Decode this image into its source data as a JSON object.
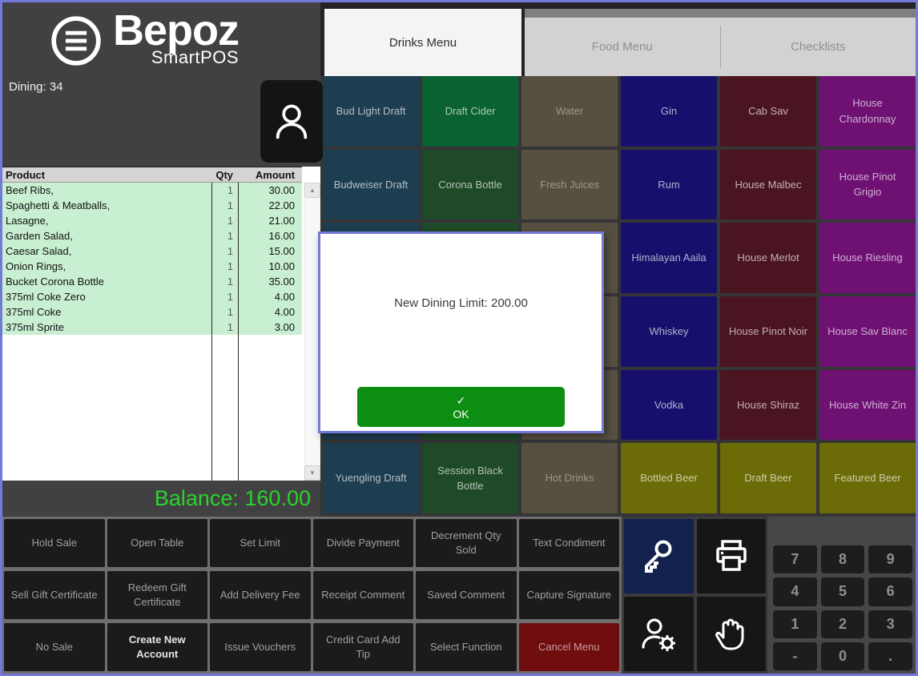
{
  "window": {
    "border_color": "#7478d8"
  },
  "brand": {
    "name": "Bepoz",
    "sub": "SmartPOS"
  },
  "left_panel": {
    "dining_label": "Dining: 34",
    "balance_label": "Balance: 160.00",
    "balance_color": "#2bd32b",
    "table": {
      "headers": [
        "Product",
        "Qty",
        "Amount"
      ],
      "rows": [
        [
          "Beef Ribs,",
          "1",
          "30.00"
        ],
        [
          "Spaghetti & Meatballs,",
          "1",
          "22.00"
        ],
        [
          "Lasagne,",
          "1",
          "21.00"
        ],
        [
          "Garden Salad,",
          "1",
          "16.00"
        ],
        [
          "Caesar Salad,",
          "1",
          "15.00"
        ],
        [
          "Onion Rings,",
          "1",
          "10.00"
        ],
        [
          "Bucket Corona Bottle",
          "1",
          "35.00"
        ],
        [
          "375ml Coke Zero",
          "1",
          "4.00"
        ],
        [
          "375ml Coke",
          "1",
          "4.00"
        ],
        [
          "375ml Sprite",
          "1",
          "3.00"
        ]
      ],
      "row_highlight_color": "#c9efd2"
    }
  },
  "tabs": [
    {
      "label": "Drinks Menu",
      "active": true
    },
    {
      "label": "Food Menu",
      "active": false
    },
    {
      "label": "Checklists",
      "active": false
    }
  ],
  "menu_grid": {
    "buttons": [
      {
        "label": "Bud Light Draft",
        "color": "#1d3e50"
      },
      {
        "label": "Draft Cider",
        "color": "#0a6132"
      },
      {
        "label": "Water",
        "color": "#575040",
        "dim": true
      },
      {
        "label": "Gin",
        "color": "#16106c"
      },
      {
        "label": "Cab Sav",
        "color": "#4a1520"
      },
      {
        "label": "House Chardonnay",
        "color": "#6e1173"
      },
      {
        "label": "Budweiser Draft",
        "color": "#1d3e50"
      },
      {
        "label": "Corona Bottle",
        "color": "#1e4a28"
      },
      {
        "label": "Fresh Juices",
        "color": "#575040",
        "dim": true
      },
      {
        "label": "Rum",
        "color": "#16106c"
      },
      {
        "label": "House Malbec",
        "color": "#4a1520"
      },
      {
        "label": "House Pinot Grigio",
        "color": "#6e1173"
      },
      {
        "label": "",
        "color": "#1d3e50"
      },
      {
        "label": "",
        "color": "#1e4a28"
      },
      {
        "label": "",
        "color": "#575040"
      },
      {
        "label": "Himalayan Aaila",
        "color": "#16106c"
      },
      {
        "label": "House Merlot",
        "color": "#4a1520"
      },
      {
        "label": "House Riesling",
        "color": "#6e1173"
      },
      {
        "label": "",
        "color": "#1d3e50"
      },
      {
        "label": "",
        "color": "#1e4a28"
      },
      {
        "label": "",
        "color": "#575040"
      },
      {
        "label": "Whiskey",
        "color": "#16106c"
      },
      {
        "label": "House Pinot Noir",
        "color": "#4a1520"
      },
      {
        "label": "House Sav Blanc",
        "color": "#6e1173"
      },
      {
        "label": "",
        "color": "#1d3e50"
      },
      {
        "label": "",
        "color": "#1e4a28"
      },
      {
        "label": "",
        "color": "#575040"
      },
      {
        "label": "Vodka",
        "color": "#16106c"
      },
      {
        "label": "House Shiraz",
        "color": "#4a1520"
      },
      {
        "label": "House White Zin",
        "color": "#6e1173"
      },
      {
        "label": "Yuengling Draft",
        "color": "#1d3e50"
      },
      {
        "label": "Session Black Bottle",
        "color": "#1e4a28"
      },
      {
        "label": "Hot Drinks",
        "color": "#575040",
        "dim": true
      },
      {
        "label": "Bottled Beer",
        "color": "#6b6b07"
      },
      {
        "label": "Draft Beer",
        "color": "#6b6b07"
      },
      {
        "label": "Featured Beer",
        "color": "#6b6b07"
      }
    ]
  },
  "dialog": {
    "message": "New Dining Limit: 200.00",
    "check_glyph": "✓",
    "ok_label": "OK",
    "ok_color": "#0b8e11",
    "border_color": "#7478d8"
  },
  "function_buttons": [
    {
      "label": "Hold Sale"
    },
    {
      "label": "Open Table"
    },
    {
      "label": "Set Limit"
    },
    {
      "label": "Divide Payment"
    },
    {
      "label": "Decrement Qty Sold"
    },
    {
      "label": "Text Condiment"
    },
    {
      "label": "Sell Gift Certificate"
    },
    {
      "label": "Redeem Gift Certificate"
    },
    {
      "label": "Add Delivery Fee"
    },
    {
      "label": "Receipt Comment"
    },
    {
      "label": "Saved Comment"
    },
    {
      "label": "Capture Signature"
    },
    {
      "label": "No Sale"
    },
    {
      "label": "Create New Account",
      "emphasis": true
    },
    {
      "label": "Issue Vouchers"
    },
    {
      "label": "Credit Card Add Tip"
    },
    {
      "label": "Select Function"
    },
    {
      "label": "Cancel Menu",
      "danger": true
    }
  ],
  "icon_buttons": [
    {
      "name": "key",
      "highlight_color": "#13214e"
    },
    {
      "name": "printer"
    },
    {
      "name": "user-settings"
    },
    {
      "name": "hand"
    }
  ],
  "numpad": {
    "keys": [
      "7",
      "8",
      "9",
      "4",
      "5",
      "6",
      "1",
      "2",
      "3",
      "-",
      "0",
      "."
    ]
  },
  "scrollbar": {
    "up_glyph": "▲",
    "down_glyph": "▼"
  }
}
